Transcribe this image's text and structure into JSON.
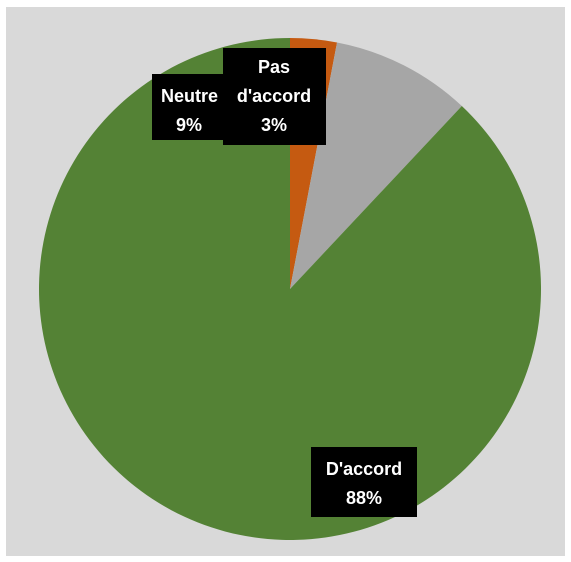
{
  "chart_data": {
    "type": "pie",
    "title": "",
    "categories": [
      "Pas d'accord",
      "Neutre",
      "D'accord"
    ],
    "values": [
      3,
      9,
      88
    ],
    "colors": [
      "#c55a11",
      "#a6a6a6",
      "#548235"
    ],
    "data_labels": [
      {
        "line1": "Pas",
        "line2": "d'accord",
        "value": "3%"
      },
      {
        "line1": "Neutre",
        "line2": "",
        "value": "9%"
      },
      {
        "line1": "D'accord",
        "line2": "",
        "value": "88%"
      }
    ],
    "start_angle_deg": 0,
    "direction": "clockwise"
  }
}
